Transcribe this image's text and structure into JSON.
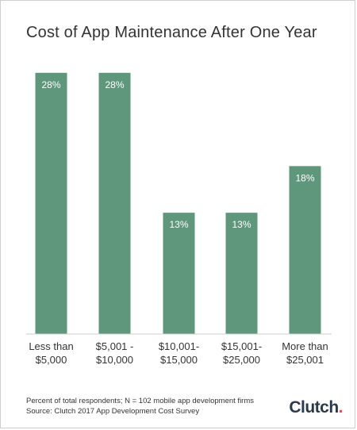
{
  "title": "Cost of App Maintenance After One Year",
  "chart_data": {
    "type": "bar",
    "title": "Cost of App Maintenance After One Year",
    "categories": [
      [
        "Less than",
        "$5,000"
      ],
      [
        "$5,001 -",
        "$10,000"
      ],
      [
        "$10,001-",
        "$15,000"
      ],
      [
        "$15,001-",
        "$25,000"
      ],
      [
        "More than",
        "$25,001"
      ]
    ],
    "values": [
      28,
      28,
      13,
      13,
      18
    ],
    "data_labels": [
      "28%",
      "28%",
      "13%",
      "13%",
      "18%"
    ],
    "ylim": [
      0,
      29
    ],
    "grid": false,
    "bar_color": "#5f977c"
  },
  "footnote": {
    "line1": "Percent of total respondents; N = 102 mobile app development firms",
    "line2": "Source: Clutch 2017 App Development Cost Survey"
  },
  "logo": {
    "text": "Clutch",
    "dot_color": "#e5533d"
  }
}
